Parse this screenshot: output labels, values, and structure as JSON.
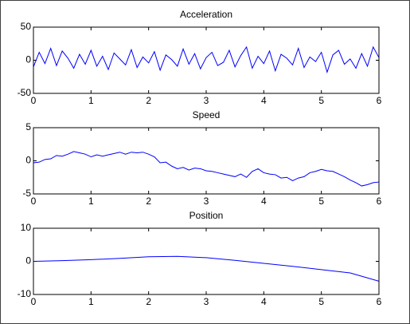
{
  "chart_data": [
    {
      "type": "line",
      "title": "Acceleration",
      "x": [
        0,
        0.1,
        0.2,
        0.3,
        0.4,
        0.5,
        0.6,
        0.7,
        0.8,
        0.9,
        1,
        1.1,
        1.2,
        1.3,
        1.4,
        1.5,
        1.6,
        1.7,
        1.8,
        1.9,
        2,
        2.1,
        2.2,
        2.3,
        2.4,
        2.5,
        2.6,
        2.7,
        2.8,
        2.9,
        3,
        3.1,
        3.2,
        3.3,
        3.4,
        3.5,
        3.6,
        3.7,
        3.8,
        3.9,
        4,
        4.1,
        4.2,
        4.3,
        4.4,
        4.5,
        4.6,
        4.7,
        4.8,
        4.9,
        5,
        5.1,
        5.2,
        5.3,
        5.4,
        5.5,
        5.6,
        5.7,
        5.8,
        5.9,
        6
      ],
      "series": [
        {
          "color": "#0000ff",
          "values": [
            -10,
            12,
            -5,
            18,
            -8,
            14,
            3,
            -12,
            9,
            -6,
            15,
            -9,
            6,
            -14,
            11,
            2,
            -7,
            16,
            -11,
            5,
            -4,
            13,
            -15,
            8,
            1,
            -9,
            17,
            -6,
            10,
            -13,
            4,
            12,
            -8,
            -3,
            15,
            -10,
            7,
            20,
            -12,
            6,
            -5,
            14,
            -16,
            9,
            3,
            -7,
            18,
            -11,
            5,
            -2,
            12,
            -18,
            8,
            15,
            -6,
            2,
            -12,
            10,
            -9,
            20,
            4
          ]
        }
      ],
      "xlim": [
        0,
        6
      ],
      "ylim": [
        -50,
        50
      ],
      "xticks": [
        0,
        1,
        2,
        3,
        4,
        5,
        6
      ],
      "yticks": [
        -50,
        0,
        50
      ]
    },
    {
      "type": "line",
      "title": "Speed",
      "x": [
        0,
        0.1,
        0.2,
        0.3,
        0.4,
        0.5,
        0.6,
        0.7,
        0.8,
        0.9,
        1,
        1.1,
        1.2,
        1.3,
        1.4,
        1.5,
        1.6,
        1.7,
        1.8,
        1.9,
        2,
        2.1,
        2.2,
        2.3,
        2.4,
        2.5,
        2.6,
        2.7,
        2.8,
        2.9,
        3,
        3.1,
        3.2,
        3.3,
        3.4,
        3.5,
        3.6,
        3.7,
        3.8,
        3.9,
        4,
        4.1,
        4.2,
        4.3,
        4.4,
        4.5,
        4.6,
        4.7,
        4.8,
        4.9,
        5,
        5.1,
        5.2,
        5.3,
        5.4,
        5.5,
        5.6,
        5.7,
        5.8,
        5.9,
        6
      ],
      "series": [
        {
          "color": "#0000ff",
          "values": [
            -0.3,
            -0.2,
            0.2,
            0.3,
            0.8,
            0.7,
            1.0,
            1.4,
            1.2,
            1.0,
            0.6,
            0.9,
            0.7,
            0.9,
            1.1,
            1.3,
            1.0,
            1.3,
            1.2,
            1.3,
            1.0,
            0.6,
            -0.3,
            -0.2,
            -0.8,
            -1.2,
            -1.0,
            -1.4,
            -1.1,
            -1.2,
            -1.5,
            -1.6,
            -1.8,
            -2.0,
            -2.2,
            -2.4,
            -2.0,
            -2.5,
            -1.6,
            -1.2,
            -1.8,
            -2.0,
            -2.1,
            -2.6,
            -2.5,
            -3.0,
            -2.6,
            -2.4,
            -1.8,
            -1.6,
            -1.3,
            -1.5,
            -1.6,
            -2.0,
            -2.4,
            -2.9,
            -3.3,
            -3.8,
            -3.6,
            -3.3,
            -3.2
          ]
        }
      ],
      "xlim": [
        0,
        6
      ],
      "ylim": [
        -5,
        5
      ],
      "xticks": [
        0,
        1,
        2,
        3,
        4,
        5,
        6
      ],
      "yticks": [
        -5,
        0,
        5
      ]
    },
    {
      "type": "line",
      "title": "Position",
      "x": [
        0,
        0.5,
        1,
        1.5,
        2,
        2.5,
        3,
        3.5,
        4,
        4.5,
        5,
        5.5,
        6
      ],
      "series": [
        {
          "color": "#0000ff",
          "values": [
            0,
            0.2,
            0.5,
            0.9,
            1.4,
            1.5,
            1.1,
            0.3,
            -0.6,
            -1.5,
            -2.5,
            -3.5,
            -6.0
          ]
        }
      ],
      "xlim": [
        0,
        6
      ],
      "ylim": [
        -10,
        10
      ],
      "xticks": [
        0,
        1,
        2,
        3,
        4,
        5,
        6
      ],
      "yticks": [
        -10,
        0,
        10
      ]
    }
  ]
}
